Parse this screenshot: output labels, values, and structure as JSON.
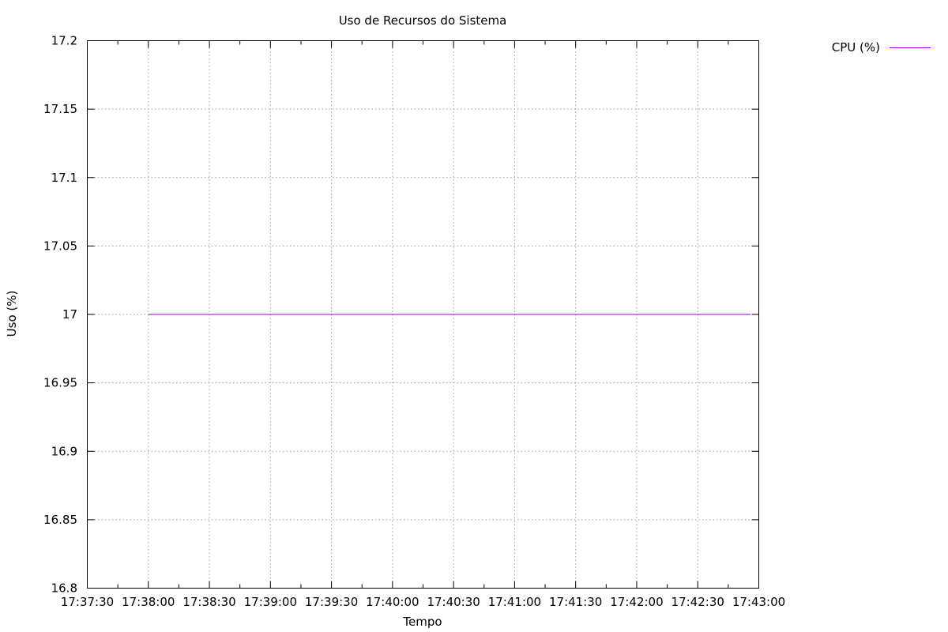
{
  "chart_data": {
    "type": "line",
    "title": "Uso de Recursos do Sistema",
    "xlabel": "Tempo",
    "ylabel": "Uso (%)",
    "x_ticks": [
      "17:37:30",
      "17:38:00",
      "17:38:30",
      "17:39:00",
      "17:39:30",
      "17:40:00",
      "17:40:30",
      "17:41:00",
      "17:41:30",
      "17:42:00",
      "17:42:30",
      "17:43:00"
    ],
    "y_ticks": [
      "16.8",
      "16.85",
      "16.9",
      "16.95",
      "17",
      "17.05",
      "17.1",
      "17.15",
      "17.2"
    ],
    "xlim": [
      "17:37:30",
      "17:43:00"
    ],
    "ylim": [
      16.8,
      17.2
    ],
    "grid": true,
    "legend_position": "outside-top-right",
    "series": [
      {
        "name": "CPU (%)",
        "color": "#9400d3",
        "x": [
          "17:38:00",
          "17:42:56"
        ],
        "y": [
          17,
          17
        ]
      }
    ]
  }
}
